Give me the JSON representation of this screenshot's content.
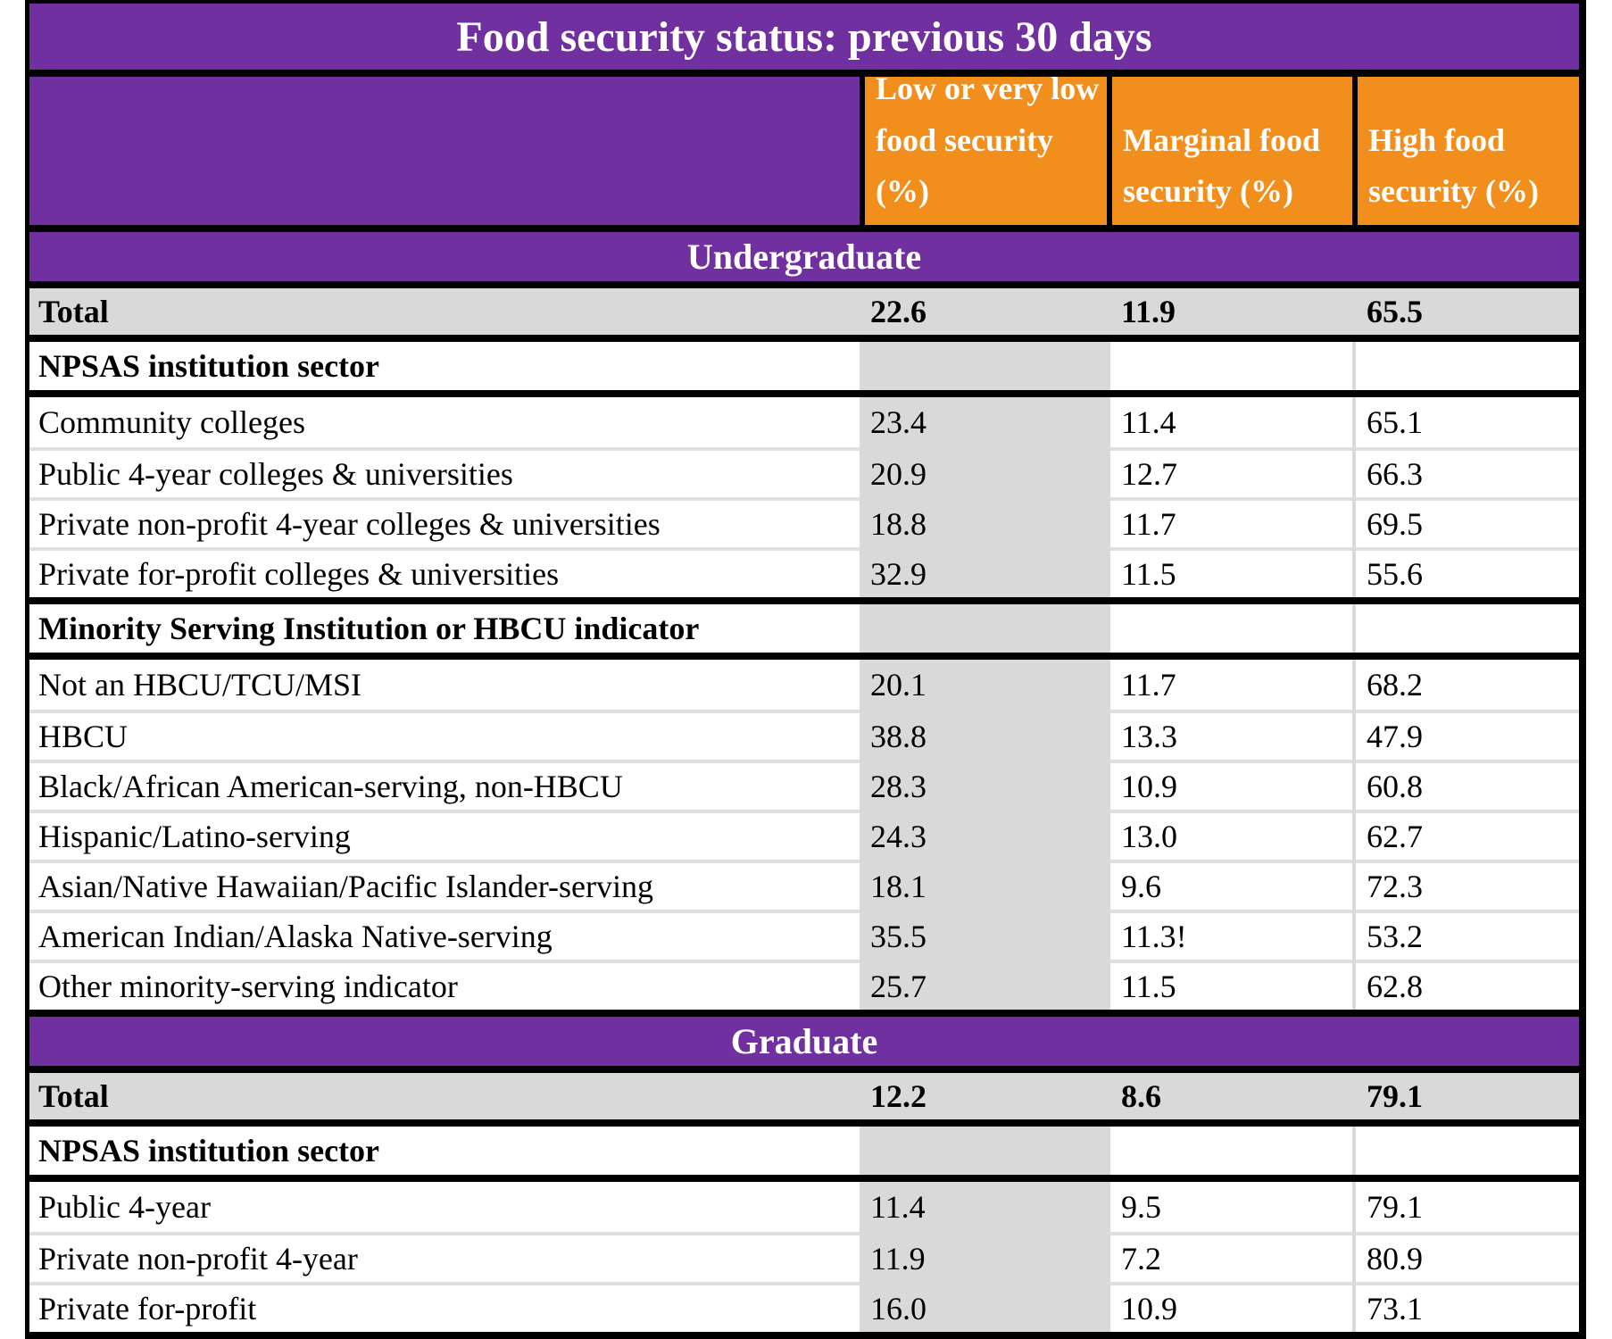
{
  "title": "Food security status: previous 30 days",
  "columns": [
    "Low or very low food security (%)",
    "Marginal food security (%)",
    "High food security (%)"
  ],
  "sections": [
    {
      "band": "Undergraduate",
      "total": {
        "label": "Total",
        "values": [
          "22.6",
          "11.9",
          "65.5"
        ]
      },
      "groups": [
        {
          "header": "NPSAS institution sector",
          "rows": [
            {
              "label": "Community colleges",
              "values": [
                "23.4",
                "11.4",
                "65.1"
              ]
            },
            {
              "label": "Public 4-year colleges & universities",
              "values": [
                "20.9",
                "12.7",
                "66.3"
              ]
            },
            {
              "label": "Private non-profit 4-year colleges & universities",
              "values": [
                "18.8",
                "11.7",
                "69.5"
              ]
            },
            {
              "label": "Private for-profit colleges & universities",
              "values": [
                "32.9",
                "11.5",
                "55.6"
              ]
            }
          ]
        },
        {
          "header": "Minority Serving Institution or HBCU indicator",
          "rows": [
            {
              "label": "Not an HBCU/TCU/MSI",
              "values": [
                "20.1",
                "11.7",
                "68.2"
              ]
            },
            {
              "label": "HBCU",
              "values": [
                "38.8",
                "13.3",
                "47.9"
              ]
            },
            {
              "label": "Black/African American-serving, non-HBCU",
              "values": [
                "28.3",
                "10.9",
                "60.8"
              ]
            },
            {
              "label": "Hispanic/Latino-serving",
              "values": [
                "24.3",
                "13.0",
                "62.7"
              ]
            },
            {
              "label": "Asian/Native Hawaiian/Pacific Islander-serving",
              "values": [
                "18.1",
                "9.6",
                "72.3"
              ]
            },
            {
              "label": "American Indian/Alaska Native-serving",
              "values": [
                "35.5",
                "11.3!",
                "53.2"
              ]
            },
            {
              "label": "Other minority-serving indicator",
              "values": [
                "25.7",
                "11.5",
                "62.8"
              ]
            }
          ]
        }
      ]
    },
    {
      "band": "Graduate",
      "total": {
        "label": "Total",
        "values": [
          "12.2",
          "8.6",
          "79.1"
        ]
      },
      "groups": [
        {
          "header": "NPSAS institution sector",
          "rows": [
            {
              "label": "Public 4-year",
              "values": [
                "11.4",
                "9.5",
                "79.1"
              ]
            },
            {
              "label": "Private non-profit 4-year",
              "values": [
                "11.9",
                "7.2",
                "80.9"
              ]
            },
            {
              "label": "Private for-profit",
              "values": [
                "16.0",
                "10.9",
                "73.1"
              ]
            }
          ]
        }
      ]
    }
  ],
  "colors": {
    "purple": "#7030A0",
    "orange": "#F28E1C",
    "total_row_gray": "#D9D9D9",
    "column_stripe_gray": "#D9D9D9",
    "border_black": "#000000"
  }
}
